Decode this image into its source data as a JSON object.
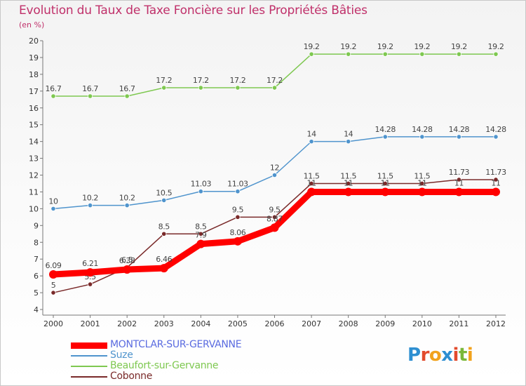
{
  "title": "Evolution du Taux de Taxe Foncière sur les Propriétés Bâties",
  "subtitle": "(en %)",
  "logo": {
    "text": "Proxiti",
    "colors": [
      "#2e8fd1",
      "#e24a2c",
      "#f1a21c",
      "#2e8fd1",
      "#e24a2c",
      "#7ab83a",
      "#f1a21c"
    ]
  },
  "chart_data": {
    "type": "line",
    "title": "Evolution du Taux de Taxe Foncière sur les Propriétés Bâties",
    "ylabel": "(en %)",
    "xlabel": "",
    "x": [
      "2000",
      "2001",
      "2002",
      "2003",
      "2004",
      "2005",
      "2006",
      "2007",
      "2008",
      "2009",
      "2010",
      "2011",
      "2012"
    ],
    "ylim": [
      4,
      20
    ],
    "yticks": [
      4,
      5,
      6,
      7,
      8,
      9,
      10,
      11,
      12,
      13,
      14,
      15,
      16,
      17,
      18,
      19,
      20
    ],
    "grid": false,
    "legend": "bottom-left",
    "series": [
      {
        "name": "MONTCLAR-SUR-GERVANNE",
        "color": "#ff0000",
        "legend_text_color": "#5a6be0",
        "values": [
          6.09,
          6.21,
          6.38,
          6.46,
          7.9,
          8.06,
          8.87,
          11,
          11,
          11,
          11,
          11,
          11
        ],
        "labels": [
          "6.09",
          "6.21",
          "6.38",
          "6.46",
          "7.9",
          "8.06",
          "8.87",
          "11",
          "11",
          "11",
          "11",
          "11",
          "11"
        ]
      },
      {
        "name": "Suze",
        "color": "#4f94cd",
        "legend_text_color": "#4f94cd",
        "values": [
          10,
          10.2,
          10.2,
          10.5,
          11.03,
          11.03,
          12,
          14,
          14,
          14.28,
          14.28,
          14.28,
          14.28
        ],
        "labels": [
          "10",
          "10.2",
          "10.2",
          "10.5",
          "11.03",
          "11.03",
          "12",
          "14",
          "14",
          "14.28",
          "14.28",
          "14.28",
          "14.28"
        ]
      },
      {
        "name": "Beaufort-sur-Gervanne",
        "color": "#7ec850",
        "legend_text_color": "#7ec850",
        "values": [
          16.7,
          16.7,
          16.7,
          17.2,
          17.2,
          17.2,
          17.2,
          19.2,
          19.2,
          19.2,
          19.2,
          19.2,
          19.2
        ],
        "labels": [
          "16.7",
          "16.7",
          "16.7",
          "17.2",
          "17.2",
          "17.2",
          "17.2",
          "19.2",
          "19.2",
          "19.2",
          "19.2",
          "19.2",
          "19.2"
        ]
      },
      {
        "name": "Cobonne",
        "color": "#7a2a2a",
        "legend_text_color": "#7a2a2a",
        "values": [
          5,
          5.5,
          6.5,
          8.5,
          8.5,
          9.5,
          9.5,
          11.5,
          11.5,
          11.5,
          11.5,
          11.73,
          11.73
        ],
        "labels": [
          "5",
          "5.5",
          "6.5",
          "8.5",
          "8.5",
          "9.5",
          "9.5",
          "11.5",
          "11.5",
          "11.5",
          "11.5",
          "11.73",
          "11.73"
        ]
      }
    ]
  }
}
